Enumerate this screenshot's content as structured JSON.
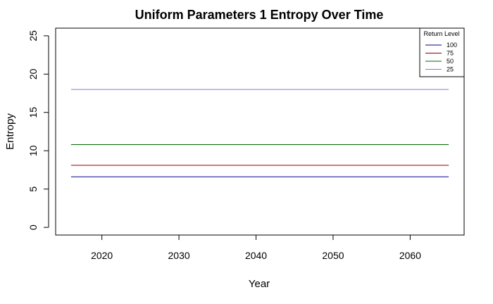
{
  "chart_data": {
    "type": "line",
    "title": "Uniform Parameters 1 Entropy Over Time",
    "xlabel": "Year",
    "ylabel": "Entropy",
    "x": [
      2016,
      2065
    ],
    "xlim": [
      2014,
      2067
    ],
    "ylim": [
      -1,
      26
    ],
    "xticks": [
      2020,
      2030,
      2040,
      2050,
      2060
    ],
    "yticks": [
      0,
      5,
      10,
      15,
      20,
      25
    ],
    "grid": false,
    "legend": {
      "title": "Return Level",
      "position": "top-right"
    },
    "series": [
      {
        "name": "100",
        "color": "#00008B",
        "values": [
          6.6,
          6.6
        ]
      },
      {
        "name": "75",
        "color": "#8B0000",
        "values": [
          8.1,
          8.1
        ]
      },
      {
        "name": "50",
        "color": "#006400",
        "values": [
          10.8,
          10.8
        ]
      },
      {
        "name": "25",
        "color": "#9370DB",
        "values": [
          18.0,
          18.0
        ]
      }
    ]
  }
}
